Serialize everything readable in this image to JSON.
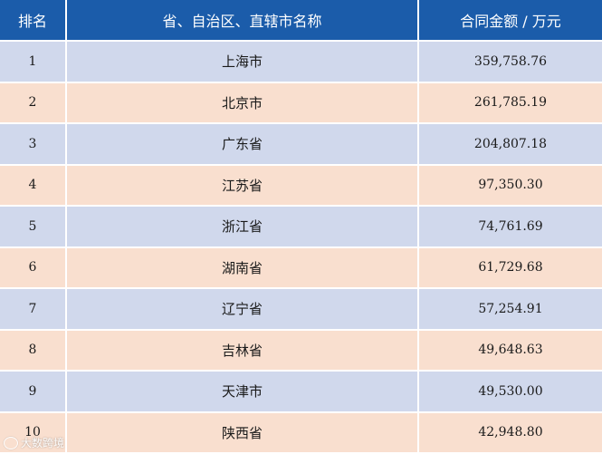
{
  "header": {
    "rank": "排名",
    "name": "省、自治区、直辖市名称",
    "amount": "合同金额 / 万元"
  },
  "rows": [
    {
      "rank": "1",
      "name": "上海市",
      "amount": "359,758.76"
    },
    {
      "rank": "2",
      "name": "北京市",
      "amount": "261,785.19"
    },
    {
      "rank": "3",
      "name": "广东省",
      "amount": "204,807.18"
    },
    {
      "rank": "4",
      "name": "江苏省",
      "amount": "97,350.30"
    },
    {
      "rank": "5",
      "name": "浙江省",
      "amount": "74,761.69"
    },
    {
      "rank": "6",
      "name": "湖南省",
      "amount": "61,729.68"
    },
    {
      "rank": "7",
      "name": "辽宁省",
      "amount": "57,254.91"
    },
    {
      "rank": "8",
      "name": "吉林省",
      "amount": "49,648.63"
    },
    {
      "rank": "9",
      "name": "天津市",
      "amount": "49,530.00"
    },
    {
      "rank": "10",
      "name": "陕西省",
      "amount": "42,948.80"
    }
  ],
  "colors": {
    "header_bg": "#1b5caa",
    "row_odd_bg": "#d0d8ec",
    "row_even_bg": "#f9dfcf"
  },
  "watermark": {
    "text": "大数跨境",
    "icon": "brand-logo-icon"
  }
}
